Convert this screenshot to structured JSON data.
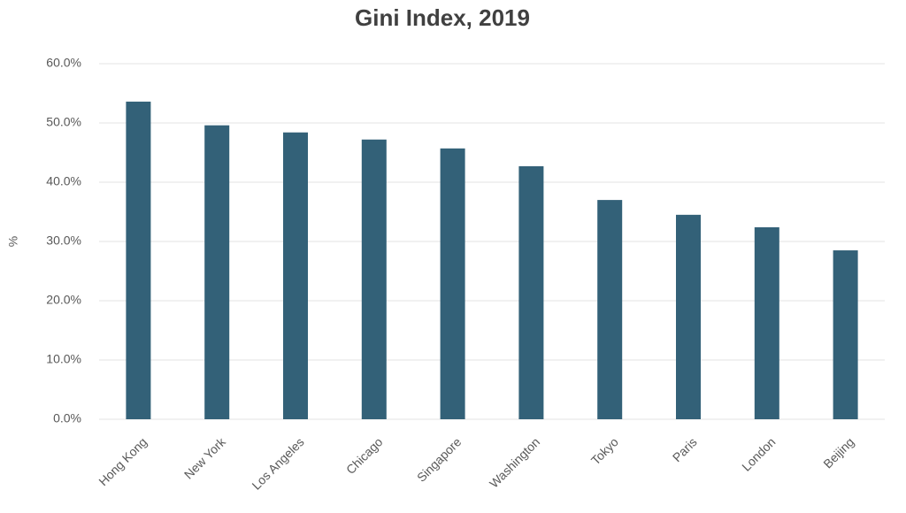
{
  "chart_data": {
    "type": "bar",
    "title": "Gini Index, 2019",
    "y_label": "%",
    "categories": [
      "Hong Kong",
      "New York",
      "Los Angeles",
      "Chicago",
      "Singapore",
      "Washington",
      "Tokyo",
      "Paris",
      "London",
      "Beijing"
    ],
    "values": [
      53.6,
      49.6,
      48.4,
      47.2,
      45.7,
      42.7,
      37.0,
      34.5,
      32.4,
      28.5
    ],
    "color": "#336178",
    "ylim": [
      0,
      60
    ],
    "yticks": [
      {
        "value": 0,
        "label": "0.0%"
      },
      {
        "value": 10,
        "label": "10.0%"
      },
      {
        "value": 20,
        "label": "20.0%"
      },
      {
        "value": 30,
        "label": "30.0%"
      },
      {
        "value": 40,
        "label": "40.0%"
      },
      {
        "value": 50,
        "label": "50.0%"
      },
      {
        "value": 60,
        "label": "60.0%"
      }
    ],
    "grid": true
  }
}
